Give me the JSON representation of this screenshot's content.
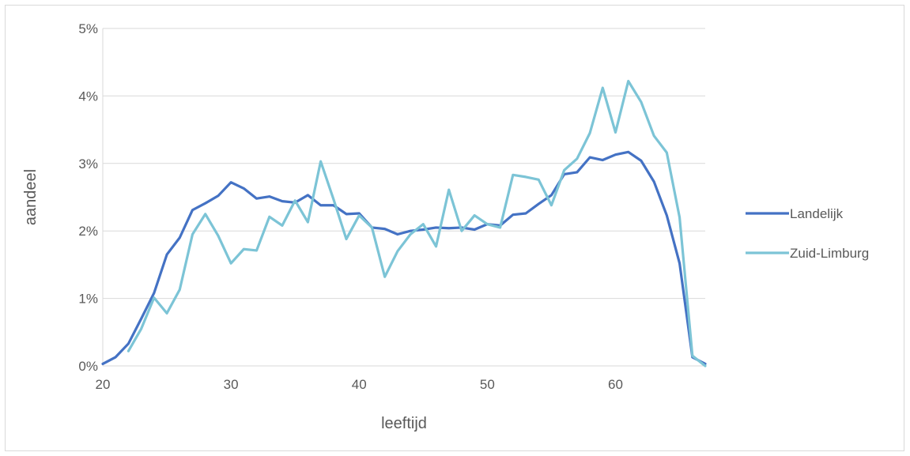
{
  "chart_data": {
    "type": "line",
    "title": "",
    "xlabel": "leeftijd",
    "ylabel": "aandeel",
    "xlim": [
      20,
      67
    ],
    "ylim": [
      0,
      0.05
    ],
    "x_ticks": [
      20,
      30,
      40,
      50,
      60
    ],
    "x_tick_labels": [
      "20",
      "30",
      "40",
      "50",
      "60"
    ],
    "y_ticks": [
      0,
      0.01,
      0.02,
      0.03,
      0.04,
      0.05
    ],
    "y_tick_labels": [
      "0%",
      "1%",
      "2%",
      "3%",
      "4%",
      "5%"
    ],
    "grid": "horizontal",
    "legend_position": "right",
    "series": [
      {
        "name": "Landelijk",
        "color": "#4472C4",
        "points": [
          [
            20,
            0.0003
          ],
          [
            21,
            0.0013
          ],
          [
            22,
            0.0033
          ],
          [
            23,
            0.007
          ],
          [
            24,
            0.0108
          ],
          [
            25,
            0.0165
          ],
          [
            26,
            0.019
          ],
          [
            27,
            0.0231
          ],
          [
            28,
            0.0241
          ],
          [
            29,
            0.0252
          ],
          [
            30,
            0.0272
          ],
          [
            31,
            0.0263
          ],
          [
            32,
            0.0248
          ],
          [
            33,
            0.0251
          ],
          [
            34,
            0.0244
          ],
          [
            35,
            0.0242
          ],
          [
            36,
            0.0253
          ],
          [
            37,
            0.0238
          ],
          [
            38,
            0.0238
          ],
          [
            39,
            0.0225
          ],
          [
            40,
            0.0226
          ],
          [
            41,
            0.0205
          ],
          [
            42,
            0.0203
          ],
          [
            43,
            0.0195
          ],
          [
            44,
            0.02
          ],
          [
            45,
            0.0202
          ],
          [
            46,
            0.0205
          ],
          [
            47,
            0.0204
          ],
          [
            48,
            0.0205
          ],
          [
            49,
            0.0202
          ],
          [
            50,
            0.021
          ],
          [
            51,
            0.0208
          ],
          [
            52,
            0.0224
          ],
          [
            53,
            0.0226
          ],
          [
            54,
            0.024
          ],
          [
            55,
            0.0253
          ],
          [
            56,
            0.0284
          ],
          [
            57,
            0.0287
          ],
          [
            58,
            0.0309
          ],
          [
            59,
            0.0305
          ],
          [
            60,
            0.0313
          ],
          [
            61,
            0.0317
          ],
          [
            62,
            0.0304
          ],
          [
            63,
            0.0273
          ],
          [
            64,
            0.0223
          ],
          [
            65,
            0.0152
          ],
          [
            66,
            0.0013
          ],
          [
            67,
            0.0003
          ]
        ]
      },
      {
        "name": "Zuid-Limburg",
        "color": "#7CC4D6",
        "points": [
          [
            22,
            0.0022
          ],
          [
            23,
            0.0055
          ],
          [
            24,
            0.0101
          ],
          [
            25,
            0.0078
          ],
          [
            26,
            0.0113
          ],
          [
            27,
            0.0195
          ],
          [
            28,
            0.0225
          ],
          [
            29,
            0.0193
          ],
          [
            30,
            0.0152
          ],
          [
            31,
            0.0173
          ],
          [
            32,
            0.0171
          ],
          [
            33,
            0.0221
          ],
          [
            34,
            0.0208
          ],
          [
            35,
            0.0245
          ],
          [
            36,
            0.0213
          ],
          [
            37,
            0.0303
          ],
          [
            38,
            0.0247
          ],
          [
            39,
            0.0188
          ],
          [
            40,
            0.0223
          ],
          [
            41,
            0.0205
          ],
          [
            42,
            0.0132
          ],
          [
            43,
            0.017
          ],
          [
            44,
            0.0195
          ],
          [
            45,
            0.021
          ],
          [
            46,
            0.0177
          ],
          [
            47,
            0.0261
          ],
          [
            48,
            0.02
          ],
          [
            49,
            0.0223
          ],
          [
            50,
            0.021
          ],
          [
            51,
            0.0205
          ],
          [
            52,
            0.0283
          ],
          [
            53,
            0.028
          ],
          [
            54,
            0.0276
          ],
          [
            55,
            0.0238
          ],
          [
            56,
            0.029
          ],
          [
            57,
            0.0307
          ],
          [
            58,
            0.0345
          ],
          [
            59,
            0.0412
          ],
          [
            60,
            0.0346
          ],
          [
            61,
            0.0422
          ],
          [
            62,
            0.0391
          ],
          [
            63,
            0.0341
          ],
          [
            64,
            0.0316
          ],
          [
            65,
            0.022
          ],
          [
            66,
            0.0015
          ],
          [
            67,
            0.0
          ]
        ]
      }
    ]
  }
}
